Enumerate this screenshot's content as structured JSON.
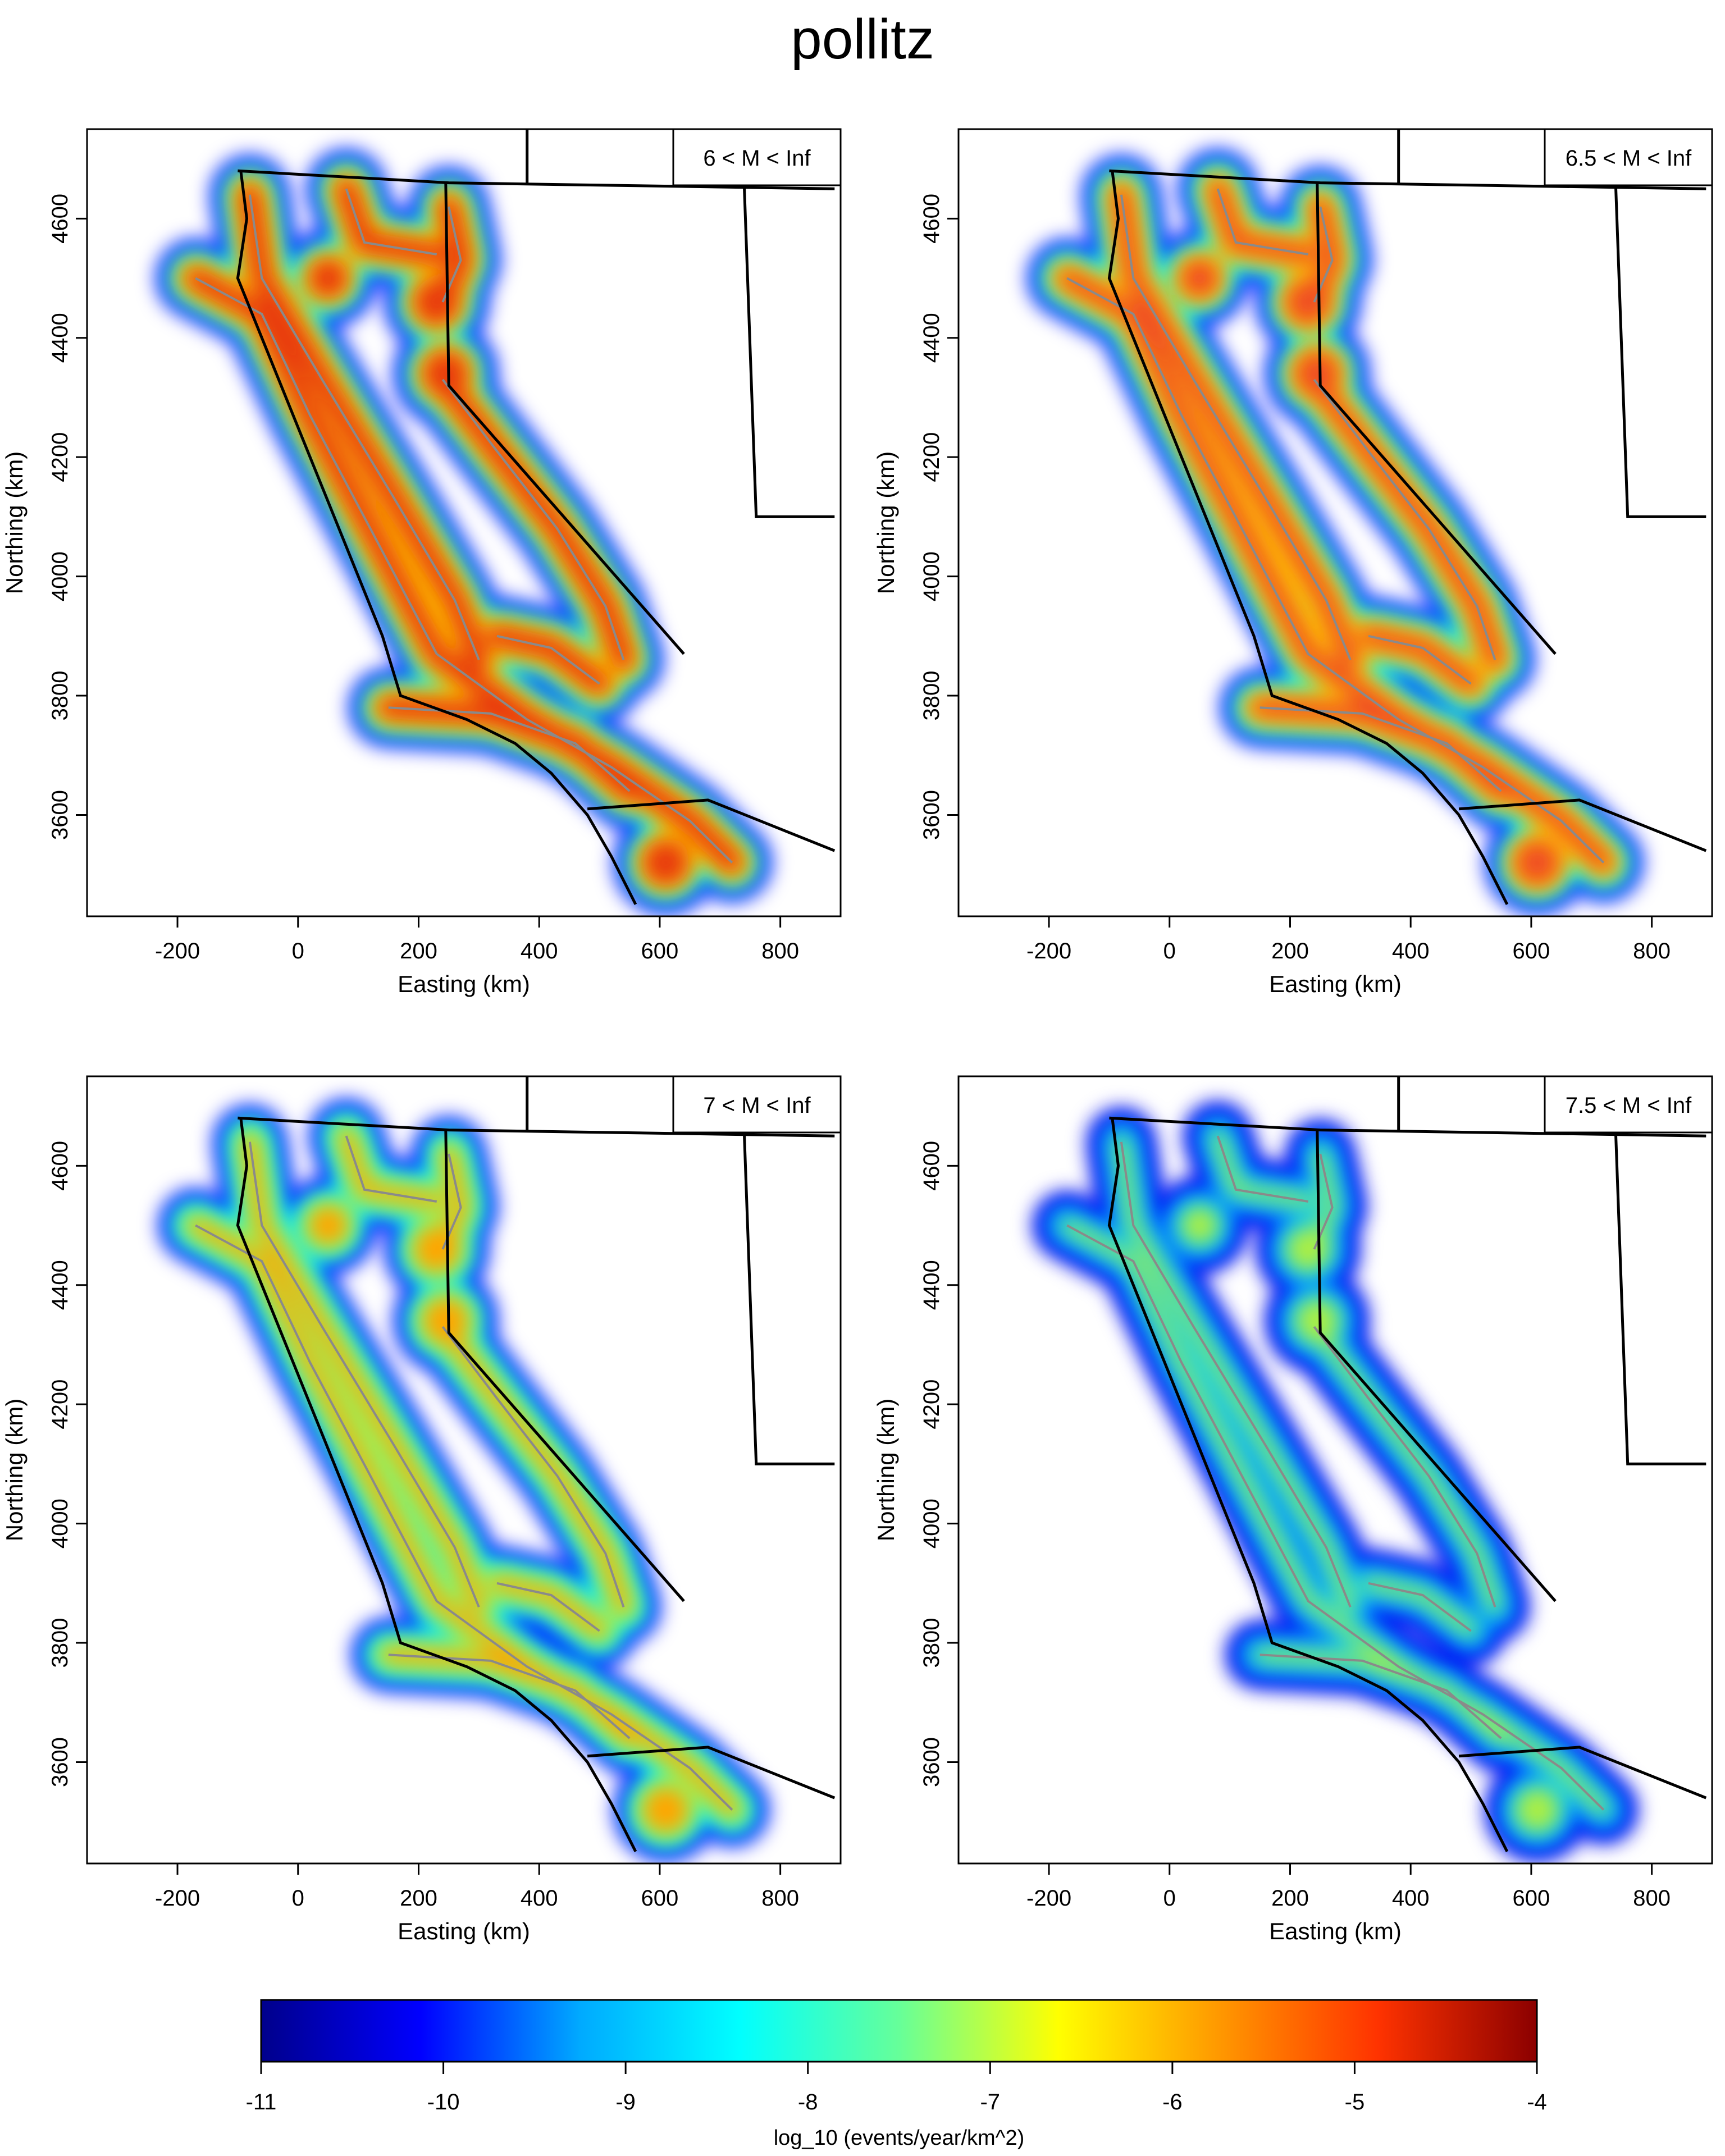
{
  "title": "pollitz",
  "x_axis": {
    "label": "Easting (km)",
    "ticks": [
      "-200",
      "0",
      "200",
      "400",
      "600",
      "800"
    ]
  },
  "y_axis": {
    "label": "Northing (km)",
    "ticks": [
      "3600",
      "3800",
      "4000",
      "4200",
      "4400",
      "4600"
    ]
  },
  "panels": [
    {
      "label": "6 < M < Inf"
    },
    {
      "label": "6.5 < M < Inf"
    },
    {
      "label": "7 < M < Inf"
    },
    {
      "label": "7.5 < M < Inf"
    }
  ],
  "colorbar": {
    "label": "log_10 (events/year/km^2)",
    "ticks": [
      "-11",
      "-10",
      "-9",
      "-8",
      "-7",
      "-6",
      "-5",
      "-4"
    ],
    "min": -11,
    "max": -4
  },
  "colors": {
    "fault_lines": "#8a8a8a",
    "coast_and_borders": "#000000",
    "scale": [
      "#00008b",
      "#0000ff",
      "#00aaff",
      "#00ffff",
      "#66ff99",
      "#ffff00",
      "#ff9900",
      "#ff3300",
      "#8b0000"
    ]
  }
}
